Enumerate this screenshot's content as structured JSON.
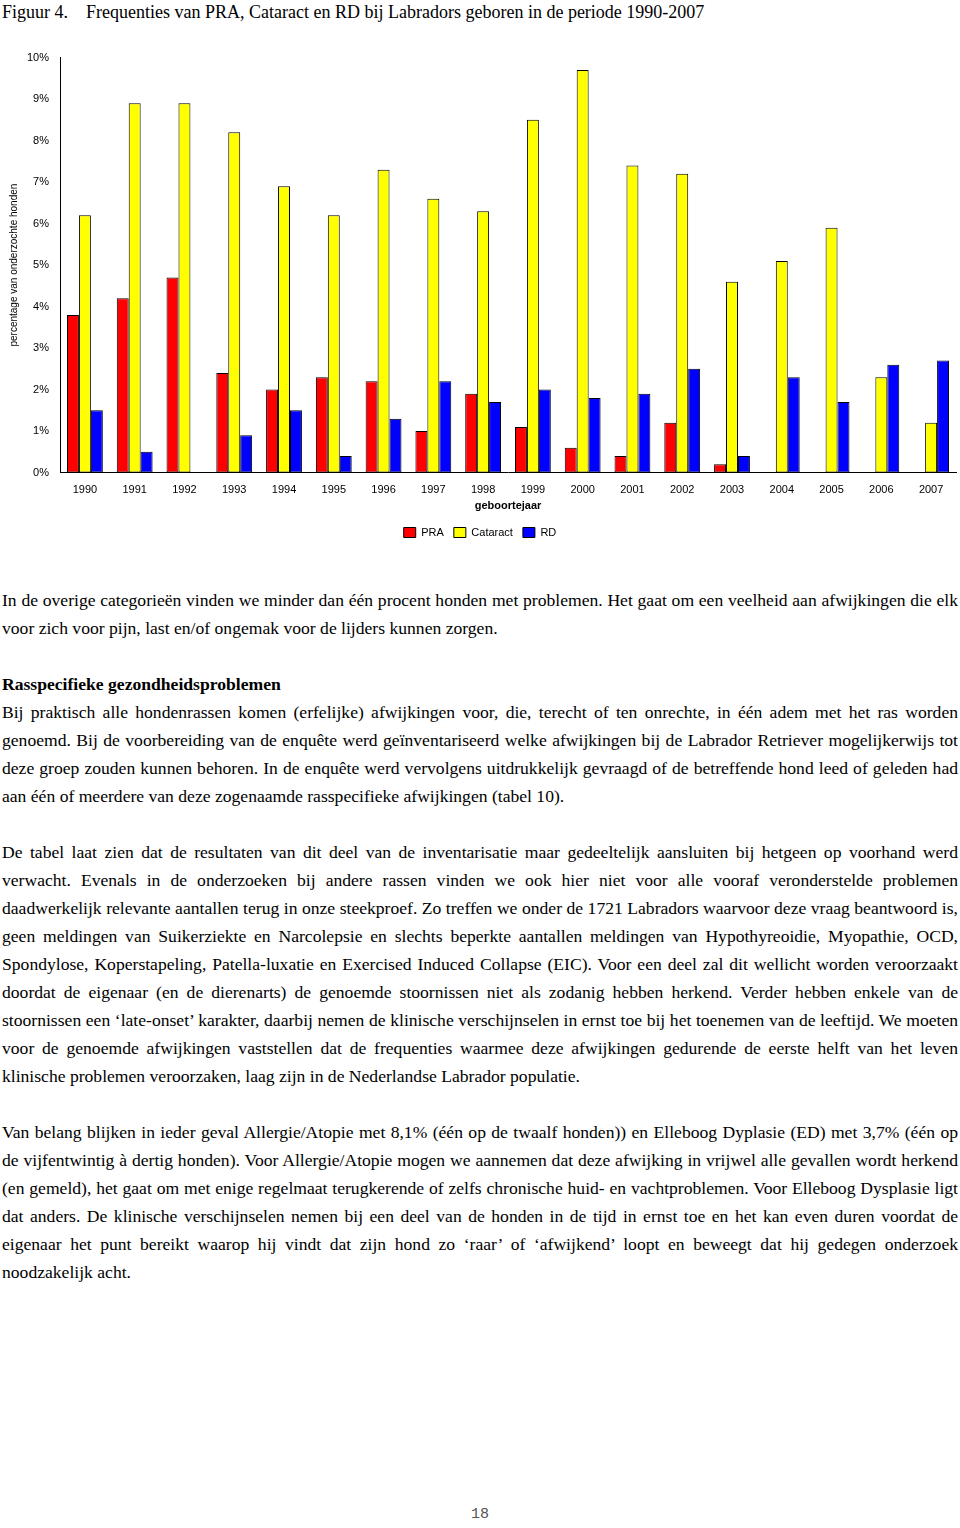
{
  "chart_data": {
    "type": "bar",
    "title": "Frequenties van PRA, Cataract en RD bij Labradors geboren in de periode 1990-2007",
    "x_label": "geboortejaar",
    "y_label": "percentage van onderzochte honden",
    "categories": [
      "1990",
      "1991",
      "1992",
      "1993",
      "1994",
      "1995",
      "1996",
      "1997",
      "1998",
      "1999",
      "2000",
      "2001",
      "2002",
      "2003",
      "2004",
      "2005",
      "2006",
      "2007"
    ],
    "series": [
      {
        "name": "PRA",
        "color": "#ff0000",
        "values": [
          3.8,
          4.2,
          4.7,
          2.4,
          2.0,
          2.3,
          2.2,
          1.0,
          1.9,
          1.1,
          0.6,
          0.4,
          1.2,
          0.2,
          0,
          0,
          0,
          0
        ]
      },
      {
        "name": "Cataract",
        "color": "#ffff00",
        "values": [
          6.2,
          8.9,
          8.9,
          8.2,
          6.9,
          6.2,
          7.3,
          6.6,
          6.3,
          8.5,
          9.7,
          7.4,
          7.2,
          4.6,
          5.1,
          5.9,
          2.3,
          1.2
        ]
      },
      {
        "name": "RD",
        "color": "#0000ff",
        "values": [
          1.5,
          0.5,
          0,
          0.9,
          1.5,
          0.4,
          1.3,
          2.2,
          1.7,
          2.0,
          1.8,
          1.9,
          2.5,
          0.4,
          2.3,
          1.7,
          2.6,
          2.7
        ]
      }
    ],
    "ylim": [
      0,
      10
    ],
    "yticks": [
      {
        "value": 0,
        "label": "0%"
      },
      {
        "value": 1,
        "label": "1%"
      },
      {
        "value": 2,
        "label": "2%"
      },
      {
        "value": 3,
        "label": "3%"
      },
      {
        "value": 4,
        "label": "4%"
      },
      {
        "value": 5,
        "label": "5%"
      },
      {
        "value": 6,
        "label": "6%"
      },
      {
        "value": 7,
        "label": "7%"
      },
      {
        "value": 8,
        "label": "8%"
      },
      {
        "value": 9,
        "label": "9%"
      },
      {
        "value": 10,
        "label": "10%"
      }
    ],
    "grid": false,
    "legend": "bottom"
  },
  "document": {
    "figure_label": "Figuur 4.",
    "body": [
      {
        "type": "p",
        "text": "In de overige categorieën vinden we minder dan één procent honden met problemen. Het gaat om een veelheid aan afwijkingen die elk voor zich voor pijn, last en/of ongemak voor de lijders kunnen zorgen."
      },
      {
        "type": "h",
        "text": "Rasspecifieke gezondheidsproblemen"
      },
      {
        "type": "p",
        "text": "Bij praktisch alle hondenrassen komen (erfelijke) afwijkingen voor, die, terecht of ten onrechte, in één adem met het ras worden genoemd. Bij de voorbereiding van de enquête werd geïnventariseerd welke afwijkingen bij de Labrador Retriever mogelijkerwijs tot deze groep zouden kunnen behoren. In de enquête werd vervolgens uitdrukkelijk gevraagd of de betreffende hond leed of geleden had aan één of meerdere van deze zogenaamde rasspecifieke afwijkingen (tabel 10)."
      },
      {
        "type": "p",
        "text": "De tabel laat zien dat de resultaten van dit deel van de inventarisatie maar gedeeltelijk aansluiten bij hetgeen op voorhand werd verwacht. Evenals in de onderzoeken bij andere rassen vinden we ook hier niet voor alle vooraf veronderstelde problemen daadwerkelijk relevante aantallen terug in onze steekproef. Zo treffen we onder de 1721 Labradors waarvoor deze vraag beantwoord is, geen meldingen van Suikerziekte en Narcolepsie en slechts beperkte aantallen meldingen van Hypothyreoidie, Myopathie, OCD, Spondylose, Koperstapeling, Patella-luxatie en Exercised Induced Collapse (EIC). Voor een deel zal dit wellicht worden veroorzaakt doordat de eigenaar (en de dierenarts) de genoemde stoornissen niet als zodanig hebben herkend. Verder hebben enkele van de stoornissen een ‘late-onset’ karakter, daarbij nemen de klinische verschijnselen in ernst toe bij het toenemen van de leeftijd.  We moeten voor de genoemde afwijkingen vaststellen dat de frequenties waarmee deze afwijkingen gedurende de eerste helft van het leven klinische problemen veroorzaken, laag zijn in de Nederlandse Labrador populatie."
      },
      {
        "type": "p",
        "text": "Van belang blijken in ieder geval Allergie/Atopie met 8,1% (één op de twaalf honden)) en Elleboog Dyplasie (ED) met 3,7%  (één op de vijfentwintig à dertig honden). Voor Allergie/Atopie mogen we aannemen dat deze afwijking in vrijwel alle gevallen wordt herkend (en gemeld), het gaat om met enige regelmaat terugkerende of zelfs chronische huid- en vachtproblemen. Voor Elleboog Dysplasie ligt dat anders. De klinische verschijnselen nemen bij een deel van de honden in de tijd in ernst  toe en het kan even duren voordat de eigenaar het punt bereikt waarop hij vindt dat zijn hond zo ‘raar’ of ‘afwijkend’ loopt en beweegt dat hij gedegen onderzoek noodzakelijk acht."
      }
    ],
    "page_number": "18"
  }
}
